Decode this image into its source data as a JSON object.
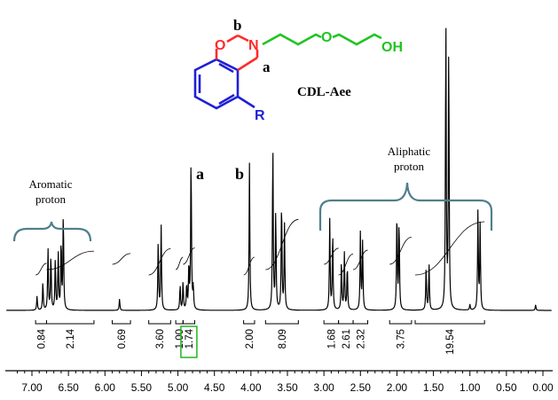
{
  "chart_data": {
    "type": "line",
    "xlim": [
      7.35,
      0.0
    ],
    "xticks": [
      "7.00",
      "6.50",
      "6.00",
      "5.50",
      "5.00",
      "4.50",
      "4.00",
      "3.50",
      "3.00",
      "2.50",
      "2.00",
      "1.50",
      "1.00",
      "0.50",
      "0.00"
    ],
    "annotations": {
      "compound": "CDL-Aee",
      "peak_a": "a",
      "peak_b": "b",
      "aromatic_line1": "Aromatic",
      "aromatic_line2": "proton",
      "aliphatic_line1": "Aliphatic",
      "aliphatic_line2": "proton"
    },
    "structure": {
      "label_b": "b",
      "label_a": "a",
      "atom_O_ring": "O",
      "atom_N": "N",
      "atom_O_chain": "O",
      "group_OH": "OH",
      "group_R": "R"
    },
    "peaks": [
      {
        "ppm": 6.93,
        "h": 0.05
      },
      {
        "ppm": 6.85,
        "h": 0.1
      },
      {
        "ppm": 6.78,
        "h": 0.22
      },
      {
        "ppm": 6.74,
        "h": 0.2
      },
      {
        "ppm": 6.68,
        "h": 0.18
      },
      {
        "ppm": 6.64,
        "h": 0.2
      },
      {
        "ppm": 6.6,
        "h": 0.25
      },
      {
        "ppm": 6.57,
        "h": 0.35
      },
      {
        "ppm": 5.8,
        "h": 0.04
      },
      {
        "ppm": 5.27,
        "h": 0.25
      },
      {
        "ppm": 5.23,
        "h": 0.3
      },
      {
        "ppm": 4.97,
        "h": 0.09
      },
      {
        "ppm": 4.93,
        "h": 0.1
      },
      {
        "ppm": 4.88,
        "h": 0.09
      },
      {
        "ppm": 4.85,
        "h": 0.16
      },
      {
        "ppm": 4.82,
        "h": 0.56
      },
      {
        "ppm": 4.79,
        "h": 0.08
      },
      {
        "ppm": 4.02,
        "h": 0.52
      },
      {
        "ppm": 3.7,
        "h": 0.6
      },
      {
        "ppm": 3.66,
        "h": 0.35
      },
      {
        "ppm": 3.58,
        "h": 0.4
      },
      {
        "ppm": 3.54,
        "h": 0.3
      },
      {
        "ppm": 2.92,
        "h": 0.32
      },
      {
        "ppm": 2.88,
        "h": 0.28
      },
      {
        "ppm": 2.76,
        "h": 0.18
      },
      {
        "ppm": 2.72,
        "h": 0.2
      },
      {
        "ppm": 2.68,
        "h": 0.16
      },
      {
        "ppm": 2.5,
        "h": 0.28
      },
      {
        "ppm": 2.47,
        "h": 0.24
      },
      {
        "ppm": 2.0,
        "h": 0.36
      },
      {
        "ppm": 1.97,
        "h": 0.32
      },
      {
        "ppm": 1.6,
        "h": 0.15
      },
      {
        "ppm": 1.56,
        "h": 0.16
      },
      {
        "ppm": 1.33,
        "h": 1.05
      },
      {
        "ppm": 1.29,
        "h": 0.95
      },
      {
        "ppm": 1.0,
        "h": 0.02
      },
      {
        "ppm": 0.89,
        "h": 0.35
      },
      {
        "ppm": 0.86,
        "h": 0.3
      },
      {
        "ppm": 0.1,
        "h": 0.02
      }
    ],
    "integrals": [
      {
        "from": 6.95,
        "to": 6.8,
        "value": "0.84"
      },
      {
        "from": 6.8,
        "to": 6.15,
        "value": "2.14"
      },
      {
        "from": 5.9,
        "to": 5.65,
        "value": "0.69"
      },
      {
        "from": 5.4,
        "to": 5.1,
        "value": "3.60"
      },
      {
        "from": 5.03,
        "to": 4.93,
        "value": "1.00"
      },
      {
        "from": 4.93,
        "to": 4.77,
        "value": "1.74",
        "boxed": true
      },
      {
        "from": 4.1,
        "to": 3.95,
        "value": "2.00"
      },
      {
        "from": 3.8,
        "to": 3.35,
        "value": "8.09"
      },
      {
        "from": 3.0,
        "to": 2.8,
        "value": "1.68"
      },
      {
        "from": 2.8,
        "to": 2.6,
        "value": "2.61"
      },
      {
        "from": 2.6,
        "to": 2.4,
        "value": "2.32"
      },
      {
        "from": 2.1,
        "to": 1.8,
        "value": "3.75"
      },
      {
        "from": 1.75,
        "to": 0.8,
        "value": "19.54"
      }
    ]
  }
}
